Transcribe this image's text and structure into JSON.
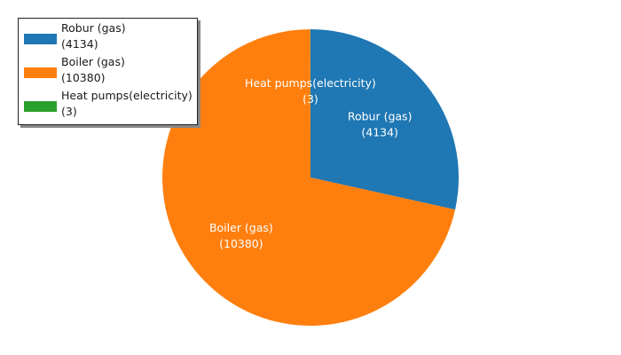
{
  "chart_data": {
    "type": "pie",
    "labels": [
      "Robur (gas)",
      "Boiler (gas)",
      "Heat pumps(electricity)"
    ],
    "values": [
      4134,
      10380,
      3
    ],
    "value_labels": [
      "(4134)",
      "(10380)",
      "(3)"
    ],
    "colors": [
      "#1f77b4",
      "#ff7f0e",
      "#2ca02c"
    ],
    "start_angle": "top",
    "direction": "clockwise",
    "legend_position": "upper-left",
    "label_color": "#ffffff"
  }
}
